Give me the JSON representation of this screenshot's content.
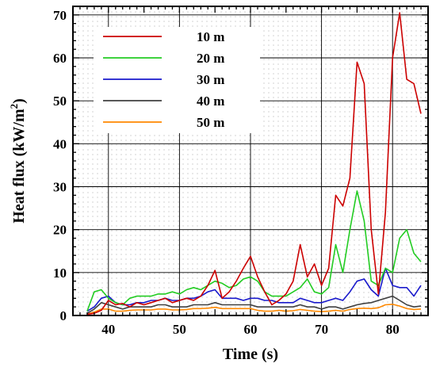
{
  "chart_data": {
    "type": "line",
    "title": "",
    "xlabel": "Time (s)",
    "ylabel_main": "Heat flux (kW/m",
    "ylabel_sup": "2",
    "ylabel_close": ")",
    "xlim": [
      35,
      85
    ],
    "ylim": [
      0,
      72
    ],
    "xticks": [
      40,
      50,
      60,
      70,
      80
    ],
    "yticks": [
      0,
      10,
      20,
      30,
      40,
      50,
      60,
      70
    ],
    "grid": true,
    "legend_position": "top-left",
    "series": [
      {
        "name": "10 m",
        "color": "#cc0000",
        "points": [
          [
            37,
            0.3
          ],
          [
            38,
            0.5
          ],
          [
            39,
            1.2
          ],
          [
            40,
            3.5
          ],
          [
            41,
            2.5
          ],
          [
            42,
            2.8
          ],
          [
            43,
            2
          ],
          [
            44,
            3
          ],
          [
            45,
            2.5
          ],
          [
            46,
            3
          ],
          [
            47,
            3.5
          ],
          [
            48,
            4
          ],
          [
            49,
            3
          ],
          [
            50,
            3.5
          ],
          [
            51,
            4
          ],
          [
            52,
            3.5
          ],
          [
            53,
            4.5
          ],
          [
            54,
            7
          ],
          [
            55,
            10.5
          ],
          [
            56,
            4
          ],
          [
            57,
            5.5
          ],
          [
            58,
            8
          ],
          [
            59,
            11
          ],
          [
            60,
            13.8
          ],
          [
            61,
            9
          ],
          [
            62,
            5.5
          ],
          [
            63,
            2.5
          ],
          [
            64,
            3.5
          ],
          [
            65,
            5
          ],
          [
            66,
            8
          ],
          [
            67,
            16.5
          ],
          [
            68,
            9
          ],
          [
            69,
            12
          ],
          [
            70,
            7
          ],
          [
            71,
            11
          ],
          [
            72,
            28
          ],
          [
            73,
            25.5
          ],
          [
            74,
            32
          ],
          [
            75,
            59
          ],
          [
            76,
            54
          ],
          [
            77,
            20
          ],
          [
            78,
            5
          ],
          [
            79,
            24
          ],
          [
            80,
            60
          ],
          [
            81,
            70.5
          ],
          [
            82,
            55
          ],
          [
            83,
            54
          ],
          [
            84,
            47
          ]
        ]
      },
      {
        "name": "20 m",
        "color": "#22cc22",
        "points": [
          [
            37,
            1
          ],
          [
            38,
            5.5
          ],
          [
            39,
            6
          ],
          [
            40,
            4
          ],
          [
            41,
            3
          ],
          [
            42,
            2.5
          ],
          [
            43,
            4
          ],
          [
            44,
            4.5
          ],
          [
            45,
            4.5
          ],
          [
            46,
            4.5
          ],
          [
            47,
            5
          ],
          [
            48,
            5
          ],
          [
            49,
            5.5
          ],
          [
            50,
            5
          ],
          [
            51,
            6
          ],
          [
            52,
            6.5
          ],
          [
            53,
            6
          ],
          [
            54,
            7
          ],
          [
            55,
            8
          ],
          [
            56,
            7.5
          ],
          [
            57,
            6.5
          ],
          [
            58,
            7
          ],
          [
            59,
            8.5
          ],
          [
            60,
            9
          ],
          [
            61,
            8
          ],
          [
            62,
            5.5
          ],
          [
            63,
            4.5
          ],
          [
            64,
            4.5
          ],
          [
            65,
            4.5
          ],
          [
            66,
            5.5
          ],
          [
            67,
            6.5
          ],
          [
            68,
            8.5
          ],
          [
            69,
            5.5
          ],
          [
            70,
            5
          ],
          [
            71,
            6.5
          ],
          [
            72,
            16.5
          ],
          [
            73,
            10
          ],
          [
            74,
            20
          ],
          [
            75,
            29
          ],
          [
            76,
            22
          ],
          [
            77,
            8
          ],
          [
            78,
            7
          ],
          [
            79,
            11
          ],
          [
            80,
            10
          ],
          [
            81,
            18
          ],
          [
            82,
            20
          ],
          [
            83,
            14.5
          ],
          [
            84,
            12.5
          ]
        ]
      },
      {
        "name": "30 m",
        "color": "#1a1acc",
        "points": [
          [
            37,
            1
          ],
          [
            38,
            2
          ],
          [
            39,
            4
          ],
          [
            40,
            4.5
          ],
          [
            41,
            3
          ],
          [
            42,
            2.5
          ],
          [
            43,
            2.5
          ],
          [
            44,
            3
          ],
          [
            45,
            3
          ],
          [
            46,
            3.5
          ],
          [
            47,
            3.5
          ],
          [
            48,
            4
          ],
          [
            49,
            3.5
          ],
          [
            50,
            3.5
          ],
          [
            51,
            4
          ],
          [
            52,
            4
          ],
          [
            53,
            4.5
          ],
          [
            54,
            5.5
          ],
          [
            55,
            6
          ],
          [
            56,
            4
          ],
          [
            57,
            4
          ],
          [
            58,
            4
          ],
          [
            59,
            3.5
          ],
          [
            60,
            4
          ],
          [
            61,
            4
          ],
          [
            62,
            3.5
          ],
          [
            63,
            3.5
          ],
          [
            64,
            3
          ],
          [
            65,
            3
          ],
          [
            66,
            3
          ],
          [
            67,
            4
          ],
          [
            68,
            3.5
          ],
          [
            69,
            3
          ],
          [
            70,
            3
          ],
          [
            71,
            3.5
          ],
          [
            72,
            4
          ],
          [
            73,
            3.5
          ],
          [
            74,
            5.5
          ],
          [
            75,
            8
          ],
          [
            76,
            8.5
          ],
          [
            77,
            6
          ],
          [
            78,
            4.5
          ],
          [
            79,
            11
          ],
          [
            80,
            7
          ],
          [
            81,
            6.5
          ],
          [
            82,
            6.5
          ],
          [
            83,
            4.5
          ],
          [
            84,
            7
          ]
        ]
      },
      {
        "name": "40 m",
        "color": "#404040",
        "points": [
          [
            37,
            0.5
          ],
          [
            38,
            1.5
          ],
          [
            39,
            3
          ],
          [
            40,
            2.5
          ],
          [
            41,
            2
          ],
          [
            42,
            1.5
          ],
          [
            43,
            2
          ],
          [
            44,
            2
          ],
          [
            45,
            2
          ],
          [
            46,
            2
          ],
          [
            47,
            2.5
          ],
          [
            48,
            2.5
          ],
          [
            49,
            2
          ],
          [
            50,
            2
          ],
          [
            51,
            2
          ],
          [
            52,
            2.5
          ],
          [
            53,
            2.5
          ],
          [
            54,
            2.5
          ],
          [
            55,
            3
          ],
          [
            56,
            2.5
          ],
          [
            57,
            2.5
          ],
          [
            58,
            2.5
          ],
          [
            59,
            2.5
          ],
          [
            60,
            2.5
          ],
          [
            61,
            2
          ],
          [
            62,
            2
          ],
          [
            63,
            2
          ],
          [
            64,
            2
          ],
          [
            65,
            2
          ],
          [
            66,
            2
          ],
          [
            67,
            2.5
          ],
          [
            68,
            2
          ],
          [
            69,
            2
          ],
          [
            70,
            1.5
          ],
          [
            71,
            2
          ],
          [
            72,
            2
          ],
          [
            73,
            1.5
          ],
          [
            74,
            2
          ],
          [
            75,
            2.5
          ],
          [
            76,
            2.8
          ],
          [
            77,
            3
          ],
          [
            78,
            3.5
          ],
          [
            79,
            4
          ],
          [
            80,
            4.5
          ],
          [
            81,
            3.5
          ],
          [
            82,
            2.5
          ],
          [
            83,
            2
          ],
          [
            84,
            2.2
          ]
        ]
      },
      {
        "name": "50 m",
        "color": "#ff8800",
        "points": [
          [
            37,
            0.3
          ],
          [
            38,
            0.8
          ],
          [
            39,
            1.5
          ],
          [
            40,
            1.5
          ],
          [
            41,
            1
          ],
          [
            42,
            1
          ],
          [
            43,
            1.2
          ],
          [
            44,
            1.3
          ],
          [
            45,
            1.3
          ],
          [
            46,
            1.3
          ],
          [
            47,
            1.5
          ],
          [
            48,
            1.5
          ],
          [
            49,
            1.3
          ],
          [
            50,
            1.3
          ],
          [
            51,
            1.4
          ],
          [
            52,
            1.6
          ],
          [
            53,
            1.6
          ],
          [
            54,
            1.7
          ],
          [
            55,
            1.9
          ],
          [
            56,
            1.6
          ],
          [
            57,
            1.6
          ],
          [
            58,
            1.6
          ],
          [
            59,
            1.6
          ],
          [
            60,
            1.6
          ],
          [
            61,
            1.2
          ],
          [
            62,
            1
          ],
          [
            63,
            1
          ],
          [
            64,
            1.2
          ],
          [
            65,
            1
          ],
          [
            66,
            1.1
          ],
          [
            67,
            1.4
          ],
          [
            68,
            1.2
          ],
          [
            69,
            1
          ],
          [
            70,
            0.9
          ],
          [
            71,
            1
          ],
          [
            72,
            1.2
          ],
          [
            73,
            1
          ],
          [
            74,
            1.4
          ],
          [
            75,
            1.6
          ],
          [
            76,
            1.7
          ],
          [
            77,
            1.6
          ],
          [
            78,
            1.8
          ],
          [
            79,
            2.5
          ],
          [
            80,
            2.6
          ],
          [
            81,
            2.2
          ],
          [
            82,
            1.6
          ],
          [
            83,
            1.4
          ],
          [
            84,
            1.5
          ]
        ]
      }
    ]
  }
}
